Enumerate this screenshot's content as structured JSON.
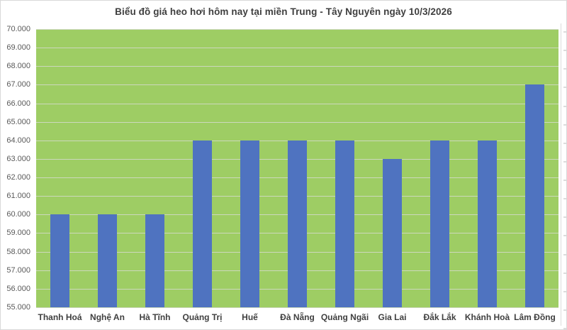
{
  "chart_data": {
    "type": "bar",
    "title": "Biểu đồ giá heo hơi hôm nay tại miền Trung - Tây Nguyên ngày 10/3/2026",
    "categories": [
      "Thanh Hoá",
      "Nghệ An",
      "Hà Tĩnh",
      "Quảng Trị",
      "Huế",
      "Đà Nẵng",
      "Quảng Ngãi",
      "Gia Lai",
      "Đắk Lắk",
      "Khánh Hoà",
      "Lâm Đồng"
    ],
    "values": [
      60000,
      60000,
      60000,
      64000,
      64000,
      64000,
      64000,
      63000,
      64000,
      64000,
      67000
    ],
    "xlabel": "",
    "ylabel": "",
    "ylim": [
      55000,
      70000
    ],
    "ytick_step": 1000,
    "ytick_labels_top_to_bottom": [
      "70.000",
      "69.000",
      "68.000",
      "67.000",
      "66.000",
      "65.000",
      "64.000",
      "63.000",
      "62.000",
      "61.000",
      "60.000",
      "59.000",
      "58.000",
      "57.000",
      "56.000",
      "55.000"
    ],
    "grid": true,
    "legend_position": "none",
    "colors": {
      "bar": "#4f73c0",
      "plot_background": "#9ecd64",
      "gridline": "#ccd8bd",
      "title_text": "#3f3f3f",
      "axis_tick_text": "#595959",
      "category_text": "#3f3f3f",
      "chart_border": "#d9d9d9",
      "right_tick": "#dcdcdc"
    }
  }
}
